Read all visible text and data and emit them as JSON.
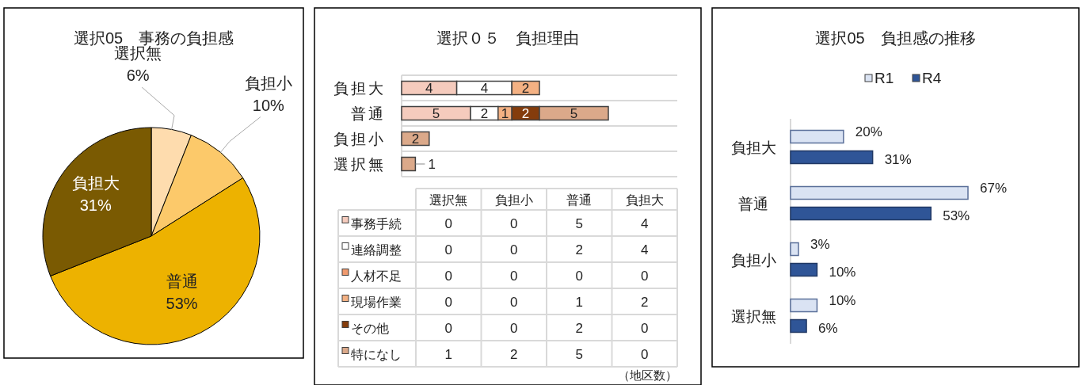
{
  "chart_data": [
    {
      "type": "pie",
      "title": "選択05　事務の負担感",
      "categories": [
        "選択無",
        "負担小",
        "普通",
        "負担大"
      ],
      "values": [
        6,
        10,
        53,
        31
      ],
      "colors": [
        "#fedcae",
        "#fcc96a",
        "#edb200",
        "#7a5a02"
      ],
      "value_labels": [
        "6%",
        "10%",
        "53%",
        "31%"
      ]
    },
    {
      "type": "bar",
      "orientation": "horizontal",
      "stacked": true,
      "title": "選択０５　負担理由",
      "categories": [
        "負担大",
        "普通",
        "負担小",
        "選択無"
      ],
      "xlim": [
        0,
        20
      ],
      "tick_labels": "y",
      "grid": "y",
      "legend": "bottom left",
      "series": [
        {
          "name": "事務手続",
          "color": "#f5cbbd",
          "values": [
            4,
            5,
            0,
            0
          ],
          "value_labels": [
            "4",
            "5",
            null,
            null
          ]
        },
        {
          "name": "連絡調整",
          "color": "#ffffff",
          "values": [
            4,
            2,
            0,
            0
          ],
          "value_labels": [
            "4",
            "2",
            null,
            null
          ]
        },
        {
          "name": "人材不足",
          "color": "#f09a6e",
          "values": [
            0,
            0,
            0,
            0
          ],
          "value_labels": [
            null,
            null,
            null,
            null
          ]
        },
        {
          "name": "現場作業",
          "color": "#f4b183",
          "values": [
            2,
            1,
            0,
            0
          ],
          "value_labels": [
            "2",
            "1",
            null,
            null
          ]
        },
        {
          "name": "その他",
          "color": "#843c0c",
          "values": [
            0,
            2,
            0,
            0
          ],
          "value_labels": [
            null,
            "2",
            null,
            null
          ]
        },
        {
          "name": "特になし",
          "color": "#dba98a",
          "values": [
            0,
            5,
            2,
            1
          ],
          "value_labels": [
            null,
            "5",
            "2",
            "1"
          ]
        }
      ]
    },
    {
      "type": "heatmap",
      "categories": [
        "選択無",
        "負担小",
        "普通",
        "負担大"
      ],
      "y_categories": [
        null,
        null,
        null,
        null,
        null,
        null
      ],
      "cells": [
        [
          0,
          0,
          5,
          4
        ],
        [
          0,
          0,
          2,
          4
        ],
        [
          0,
          0,
          0,
          0
        ],
        [
          0,
          0,
          1,
          2
        ],
        [
          0,
          0,
          2,
          0
        ],
        [
          1,
          2,
          5,
          0
        ]
      ],
      "data_labels": true,
      "annotations": [
        "（地区数）"
      ]
    },
    {
      "type": "bar",
      "orientation": "horizontal",
      "title": "選択05　負担感の推移",
      "categories": [
        "負担大",
        "普通",
        "負担小",
        "選択無"
      ],
      "tick_labels": "y",
      "legend": "top",
      "series": [
        {
          "name": "R1",
          "color": "#dae3f3",
          "values": [
            20,
            67,
            3,
            10
          ],
          "value_labels": [
            "20%",
            "67%",
            "3%",
            "10%"
          ]
        },
        {
          "name": "R4",
          "color": "#2f5597",
          "values": [
            31,
            53,
            10,
            6
          ],
          "value_labels": [
            "31%",
            "53%",
            "10%",
            "6%"
          ]
        }
      ]
    }
  ]
}
